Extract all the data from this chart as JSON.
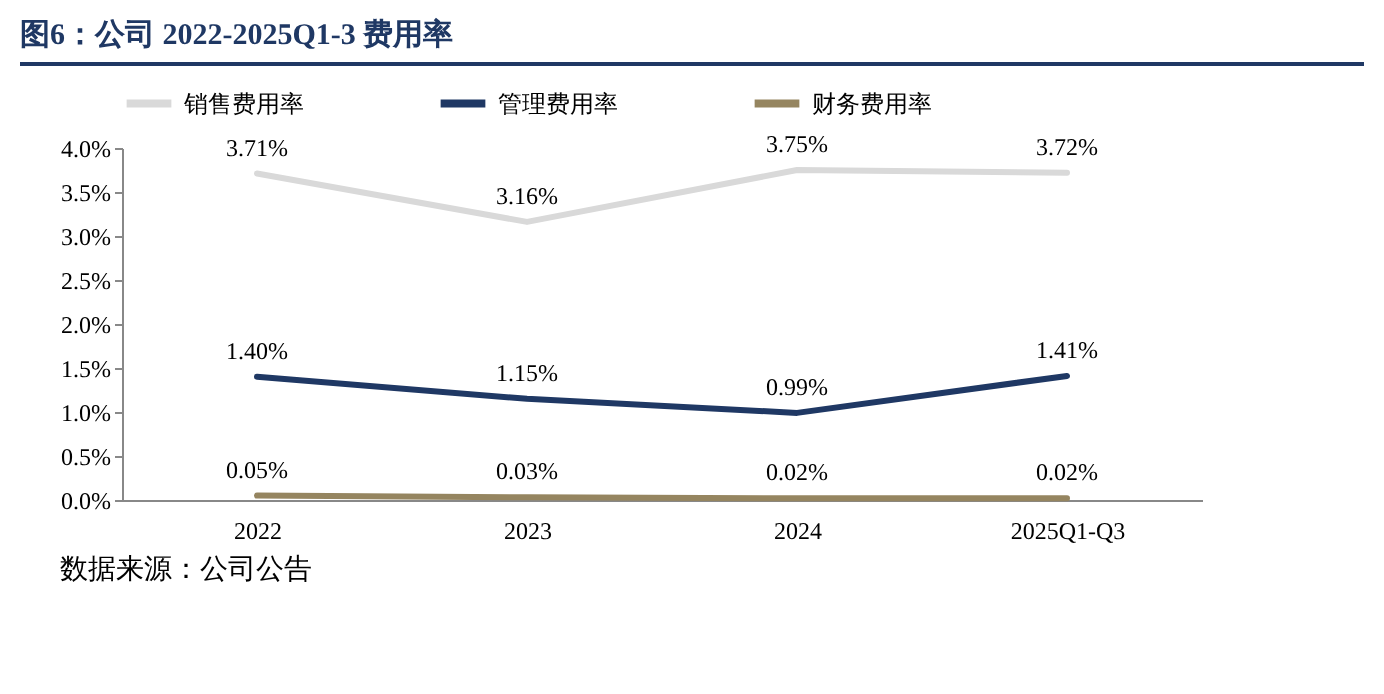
{
  "chart_data": {
    "type": "line",
    "title": "图6：公司 2022-2025Q1-3 费用率",
    "categories": [
      "2022",
      "2023",
      "2024",
      "2025Q1-Q3"
    ],
    "series": [
      {
        "name": "销售费用率",
        "color": "#d9d9d9",
        "values": [
          3.71,
          3.16,
          3.75,
          3.72
        ],
        "value_labels": [
          "3.71%",
          "3.16%",
          "3.75%",
          "3.72%"
        ]
      },
      {
        "name": "管理费用率",
        "color": "#1f3864",
        "values": [
          1.4,
          1.15,
          0.99,
          1.41
        ],
        "value_labels": [
          "1.40%",
          "1.15%",
          "0.99%",
          "1.41%"
        ]
      },
      {
        "name": "财务费用率",
        "color": "#958560",
        "values": [
          0.05,
          0.03,
          0.02,
          0.02
        ],
        "value_labels": [
          "0.05%",
          "0.03%",
          "0.02%",
          "0.02%"
        ]
      }
    ],
    "ylim": [
      0,
      4
    ],
    "yticks": [
      {
        "value": 0,
        "label": "0.0%"
      },
      {
        "value": 0.5,
        "label": "0.5%"
      },
      {
        "value": 1,
        "label": "1.0%"
      },
      {
        "value": 1.5,
        "label": "1.5%"
      },
      {
        "value": 2,
        "label": "2.0%"
      },
      {
        "value": 2.5,
        "label": "2.5%"
      },
      {
        "value": 3,
        "label": "3.0%"
      },
      {
        "value": 3.5,
        "label": "3.5%"
      },
      {
        "value": 4,
        "label": "4.0%"
      }
    ],
    "grid": false,
    "legend": "top",
    "marker": "none",
    "line_style": "solid",
    "annotations": [
      "数据来源：公司公告"
    ]
  }
}
